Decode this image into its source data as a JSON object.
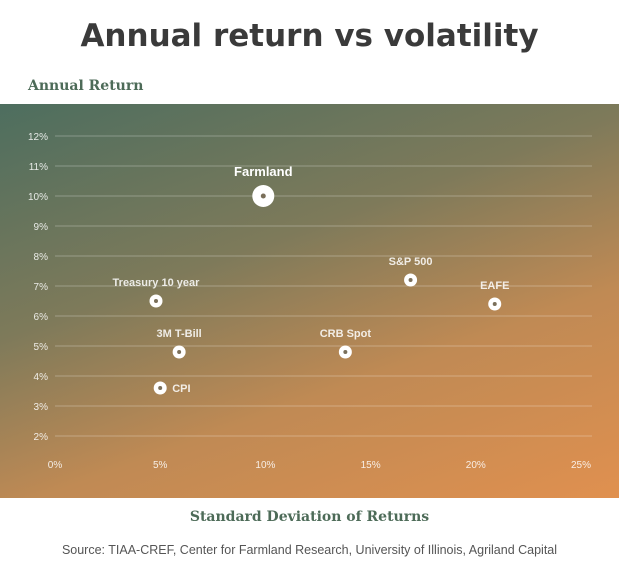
{
  "title": "Annual return vs volatility",
  "source": "Source: TIAA-CREF, Center for Farmland Research, University of Illinois, Agriland Capital",
  "chart_data": {
    "type": "scatter",
    "title": "Annual return vs volatility",
    "xlabel": "Standard Deviation of Returns",
    "ylabel": "Annual Return",
    "xlim": [
      0,
      25
    ],
    "ylim": [
      2,
      12
    ],
    "x_ticks": [
      "0%",
      "5%",
      "10%",
      "15%",
      "20%",
      "25%"
    ],
    "y_ticks": [
      "2%",
      "3%",
      "4%",
      "5%",
      "6%",
      "7%",
      "8%",
      "9%",
      "10%",
      "11%",
      "12%"
    ],
    "grid": true,
    "points": [
      {
        "label": "Farmland",
        "x": 9.9,
        "y": 10.0,
        "highlight": true
      },
      {
        "label": "Treasury 10 year",
        "x": 4.8,
        "y": 6.5
      },
      {
        "label": "3M T-Bill",
        "x": 5.9,
        "y": 4.8
      },
      {
        "label": "CPI",
        "x": 5.0,
        "y": 3.6
      },
      {
        "label": "CRB Spot",
        "x": 13.8,
        "y": 4.8
      },
      {
        "label": "S&P 500",
        "x": 16.9,
        "y": 7.2
      },
      {
        "label": "EAFE",
        "x": 20.9,
        "y": 6.4
      }
    ]
  }
}
